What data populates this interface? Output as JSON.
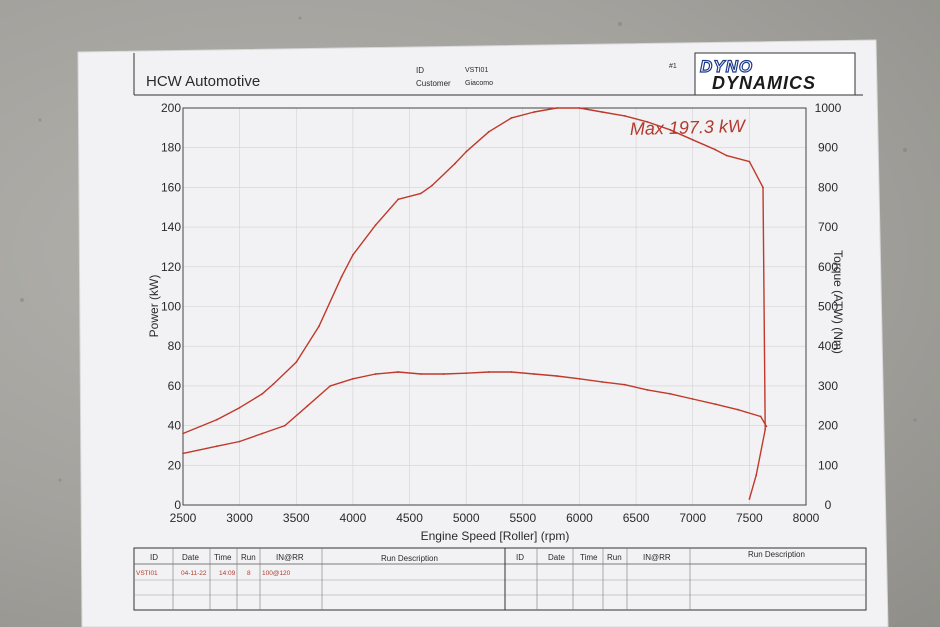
{
  "header": {
    "company": "HCW Automotive",
    "id_label": "ID",
    "id_value": "VSTI01",
    "customer_label": "Customer",
    "customer_value": "Giacomo",
    "page_number": "#1",
    "logo_line1": "DYNO",
    "logo_line2": "DYNAMICS"
  },
  "chart_data": {
    "type": "line",
    "title": "",
    "xlabel": "Engine Speed [Roller] (rpm)",
    "ylabel": "Power (kW)",
    "y2label": "Torque (ATW) (Nm)",
    "annotation": "Max 197.3 kW",
    "xlim": [
      2500,
      8000
    ],
    "ylim": [
      0,
      200
    ],
    "y2lim": [
      0,
      1000
    ],
    "x_ticks": [
      "2500",
      "3000",
      "3500",
      "4000",
      "4500",
      "5000",
      "5500",
      "6000",
      "6500",
      "7000",
      "7500",
      "8000"
    ],
    "y_ticks": [
      "0",
      "20",
      "40",
      "60",
      "80",
      "100",
      "120",
      "140",
      "160",
      "180",
      "200"
    ],
    "y2_ticks": [
      "0",
      "100",
      "200",
      "300",
      "400",
      "500",
      "600",
      "700",
      "800",
      "900",
      "1000"
    ],
    "grid": true,
    "series": [
      {
        "axis": "left",
        "color": "#c0392b",
        "x": [
          2500,
          2800,
          3000,
          3200,
          3300,
          3500,
          3700,
          3900,
          4000,
          4200,
          4400,
          4600,
          4700,
          4900,
          5000,
          5200,
          5400,
          5600,
          5800,
          6000,
          6200,
          6400,
          6600,
          6800,
          7000,
          7200,
          7300,
          7500,
          7620,
          7640,
          7560,
          7500
        ],
        "y": [
          36,
          43,
          49,
          56,
          61,
          72,
          90,
          115,
          126,
          141,
          154,
          157,
          161,
          172,
          178,
          188,
          195,
          198,
          200,
          200,
          198,
          196,
          193,
          189,
          184,
          179,
          176,
          173,
          160,
          38,
          15,
          3
        ]
      },
      {
        "axis": "right",
        "color": "#c0392b",
        "x": [
          2500,
          2800,
          3000,
          3200,
          3400,
          3600,
          3800,
          4000,
          4200,
          4400,
          4600,
          4800,
          5000,
          5200,
          5400,
          5600,
          5800,
          6000,
          6200,
          6400,
          6600,
          6800,
          7000,
          7200,
          7400,
          7600,
          7650
        ],
        "y": [
          130,
          148,
          160,
          180,
          200,
          250,
          300,
          318,
          330,
          335,
          330,
          330,
          332,
          335,
          335,
          330,
          325,
          318,
          310,
          303,
          290,
          280,
          267,
          254,
          240,
          223,
          198
        ]
      }
    ]
  },
  "table": {
    "left_headers": [
      "ID",
      "Date",
      "Time",
      "Run",
      "IN@RR",
      "Run Description"
    ],
    "right_headers": [
      "ID",
      "Date",
      "Time",
      "Run",
      "IN@RR",
      "Run Description"
    ],
    "row": [
      "VSTI01",
      "04-11-22",
      "14:09",
      "8",
      "100@120",
      ""
    ]
  }
}
